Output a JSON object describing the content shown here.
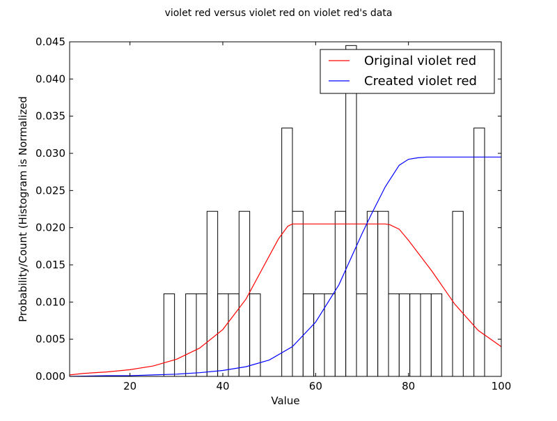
{
  "chart_data": {
    "type": "bar",
    "title": "violet red versus violet red on violet red's data",
    "xlabel": "Value",
    "ylabel": "Probability/Count (Histogram is Normalized",
    "xlim": [
      7,
      100
    ],
    "ylim": [
      0,
      0.045
    ],
    "x_ticks": [
      20,
      40,
      60,
      80,
      100
    ],
    "y_ticks": [
      0.0,
      0.005,
      0.01,
      0.015,
      0.02,
      0.025,
      0.03,
      0.035,
      0.04,
      0.045
    ],
    "y_tick_labels": [
      "0.000",
      "0.005",
      "0.010",
      "0.015",
      "0.020",
      "0.025",
      "0.030",
      "0.035",
      "0.040",
      "0.045"
    ],
    "grid": false,
    "legend_position": "top-right",
    "histogram": {
      "bin_width": 2.3,
      "bin_starts": [
        27.3,
        32.0,
        34.3,
        36.6,
        38.9,
        41.2,
        43.5,
        45.8,
        52.7,
        55.0,
        57.3,
        59.6,
        61.9,
        64.2,
        66.5,
        68.8,
        71.1,
        73.4,
        75.7,
        78.0,
        80.3,
        82.6,
        84.9,
        89.5,
        94.1
      ],
      "values": [
        0.0111,
        0.0111,
        0.0111,
        0.0222,
        0.0111,
        0.0111,
        0.0222,
        0.0111,
        0.0334,
        0.0222,
        0.0111,
        0.0111,
        0.0111,
        0.0222,
        0.0445,
        0.0111,
        0.0222,
        0.0222,
        0.0111,
        0.0111,
        0.0111,
        0.0111,
        0.0111,
        0.0222,
        0.0334
      ],
      "fill": "#ffffff",
      "edge_color": "#000000"
    },
    "series": [
      {
        "name": "Original violet red",
        "color": "#ff0000",
        "x": [
          7,
          10,
          15,
          20,
          25,
          30,
          35,
          40,
          45,
          50,
          52,
          54,
          55,
          60,
          65,
          70,
          75,
          76,
          78,
          80,
          85,
          90,
          95,
          100
        ],
        "y": [
          0.0002,
          0.0004,
          0.0006,
          0.0009,
          0.0014,
          0.0023,
          0.0038,
          0.0063,
          0.0104,
          0.0162,
          0.0185,
          0.0202,
          0.0205,
          0.0205,
          0.0205,
          0.0205,
          0.0205,
          0.0204,
          0.0198,
          0.0183,
          0.0142,
          0.0097,
          0.0062,
          0.004
        ]
      },
      {
        "name": "Created violet red",
        "color": "#0000ff",
        "x": [
          7,
          15,
          20,
          25,
          30,
          35,
          40,
          45,
          50,
          55,
          60,
          65,
          70,
          72,
          75,
          78,
          80,
          82,
          84,
          85,
          90,
          95,
          100
        ],
        "y": [
          0.0,
          0.0001,
          0.0001,
          0.0002,
          0.0003,
          0.0005,
          0.0008,
          0.0013,
          0.0022,
          0.004,
          0.0073,
          0.0123,
          0.0192,
          0.0218,
          0.0255,
          0.0284,
          0.0292,
          0.0294,
          0.0295,
          0.0295,
          0.0295,
          0.0295,
          0.0295
        ]
      }
    ]
  }
}
